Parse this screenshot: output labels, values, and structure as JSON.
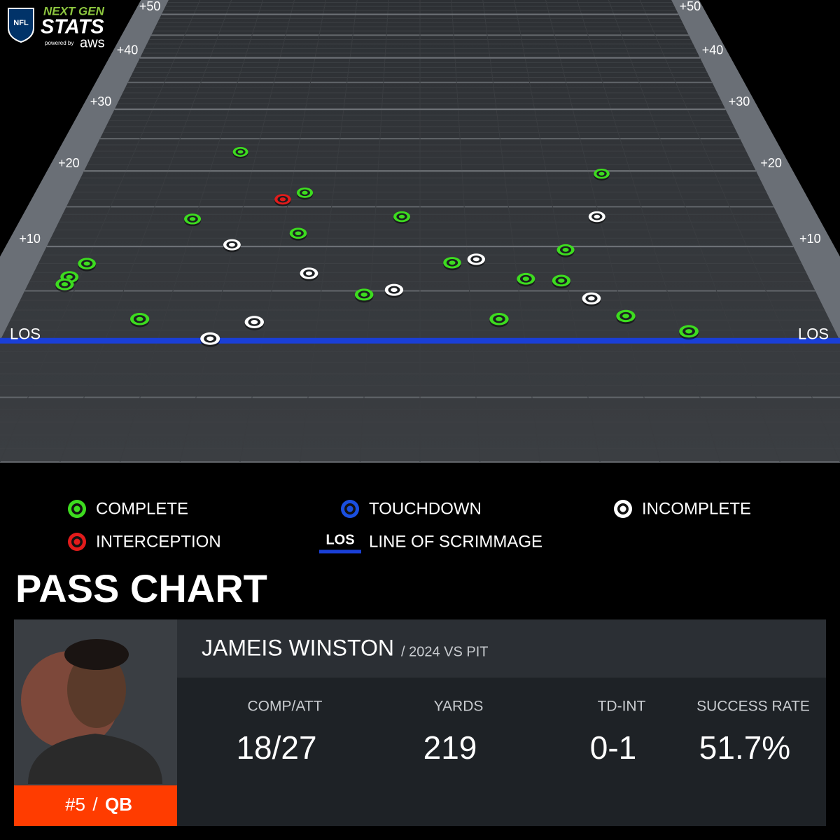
{
  "logo": {
    "league": "NFL",
    "line1": "NEXT GEN",
    "line2": "STATS",
    "powered": "powered by",
    "sponsor": "aws"
  },
  "chart_data": {
    "type": "scatter",
    "title": "PASS CHART",
    "los_label": "LOS",
    "los_legend": "LINE OF SCRIMMAGE",
    "xlim": [
      0,
      53.3
    ],
    "ylim": [
      -10,
      53.7
    ],
    "yticks": [
      {
        "value": 10,
        "label": "+10"
      },
      {
        "value": 20,
        "label": "+20"
      },
      {
        "value": 30,
        "label": "+30"
      },
      {
        "value": 40,
        "label": "+40"
      },
      {
        "value": 50,
        "label": "+50"
      }
    ],
    "series": [
      {
        "name": "COMPLETE",
        "color": "#3ddc1f",
        "x": [
          12.0,
          41.0,
          17.8,
          25.3,
          9.8,
          17.8,
          37.0,
          3.4,
          28.9,
          2.6,
          2.5,
          33.9,
          36.3,
          22.9,
          8.4,
          40.1,
          31.8,
          43.9
        ],
        "values": [
          22.9,
          19.6,
          16.9,
          13.7,
          13.4,
          11.6,
          9.6,
          8.0,
          8.1,
          6.5,
          5.7,
          6.3,
          6.1,
          4.6,
          2.1,
          2.4,
          2.1,
          0.9
        ]
      },
      {
        "name": "TOUCHDOWN",
        "color": "#1a4fe0",
        "x": [],
        "values": []
      },
      {
        "name": "INCOMPLETE",
        "color": "#ffffff",
        "x": [
          39.8,
          13.2,
          30.6,
          19.0,
          24.9,
          38.1,
          15.9,
          13.3
        ],
        "values": [
          13.7,
          10.2,
          8.5,
          6.9,
          5.1,
          4.2,
          1.8,
          0.2
        ]
      },
      {
        "name": "INTERCEPTION",
        "color": "#e21b1b",
        "x": [
          16.2
        ],
        "values": [
          16.0
        ]
      }
    ]
  },
  "player": {
    "name": "JAMEIS WINSTON",
    "context": "/ 2024 VS PIT",
    "number": "#5",
    "separator": "/",
    "position": "QB",
    "stats": [
      {
        "label": "COMP/ATT",
        "value": "18/27"
      },
      {
        "label": "YARDS",
        "value": "219"
      },
      {
        "label": "TD-INT",
        "value": "0-1"
      },
      {
        "label": "SUCCESS RATE",
        "value": "51.7%"
      }
    ]
  }
}
